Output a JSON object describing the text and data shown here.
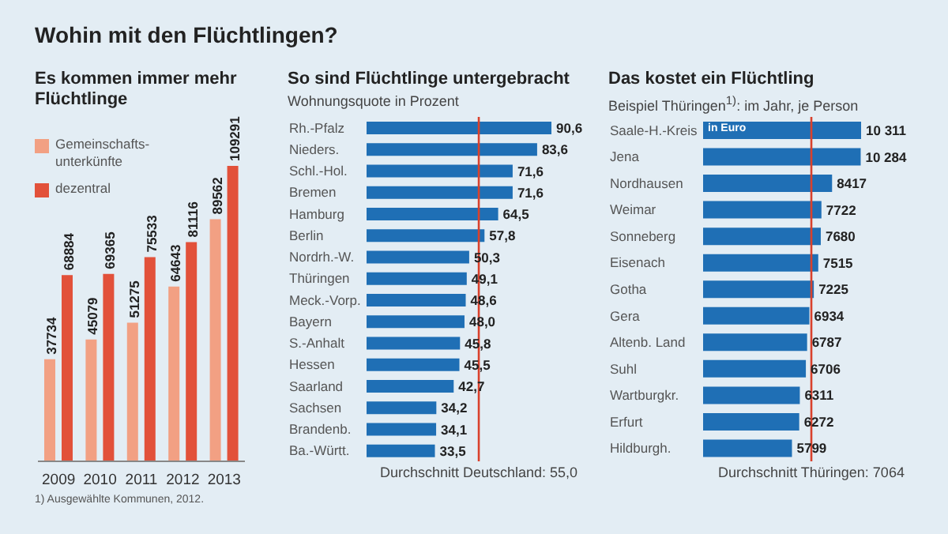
{
  "chart_data": [
    {
      "type": "bar",
      "title": "Wohin mit den Flüchtlingen?",
      "subtitle": "Es kommen immer mehr Flüchtlinge",
      "categories": [
        "2009",
        "2010",
        "2011",
        "2012",
        "2013"
      ],
      "legend": "top left",
      "series": [
        {
          "name": "Gemeinschafts-unterkünfte",
          "color": "#f2a083",
          "values": [
            37734,
            45079,
            51275,
            64643,
            89562
          ],
          "value_labels": [
            "37734",
            "45079",
            "51275",
            "64643",
            "89562"
          ]
        },
        {
          "name": "dezentral",
          "color": "#e2513a",
          "values": [
            68884,
            69365,
            75533,
            81116,
            109291
          ],
          "value_labels": [
            "68884",
            "69365",
            "75533",
            "81116",
            "109291"
          ]
        }
      ],
      "annotations": [
        "1) Ausgewählte Kommunen, 2012."
      ]
    },
    {
      "type": "bar",
      "orientation": "horizontal",
      "title": "So sind Flüchtlinge untergebracht",
      "subtitle": "Wohnungsquote in Prozent",
      "categories": [
        "Rh.-Pfalz",
        "Nieders.",
        "Schl.-Hol.",
        "Bremen",
        "Hamburg",
        "Berlin",
        "Nordrh.-W.",
        "Thüringen",
        "Meck.-Vorp.",
        "Bayern",
        "S.-Anhalt",
        "Hessen",
        "Saarland",
        "Sachsen",
        "Brandenb.",
        "Ba.-Württ."
      ],
      "color": "#1f6fb5",
      "values": [
        90.6,
        83.6,
        71.6,
        71.6,
        64.5,
        57.8,
        50.3,
        49.1,
        48.6,
        48.0,
        45.8,
        45.5,
        42.7,
        34.2,
        34.1,
        33.5
      ],
      "value_labels": [
        "90,6",
        "83,6",
        "71,6",
        "71,6",
        "64,5",
        "57,8",
        "50,3",
        "49,1",
        "48,6",
        "48,0",
        "45,8",
        "45,5",
        "42,7",
        "34,2",
        "34,1",
        "33,5"
      ],
      "ref_lines": [
        {
          "axis": "x",
          "value": 55.0,
          "label": "Durchschnitt Deutschland: 55,0",
          "color": "#d9412c"
        }
      ]
    },
    {
      "type": "bar",
      "orientation": "horizontal",
      "title": "Das kostet ein Flüchtling",
      "subtitle": "Beispiel Thüringen$^{1)}$: im Jahr, je Person",
      "categories": [
        "Saale-H.-Kreis",
        "Jena",
        "Nordhausen",
        "Weimar",
        "Sonneberg",
        "Eisenach",
        "Gotha",
        "Gera",
        "Altenb. Land",
        "Suhl",
        "Wartburgkr.",
        "Erfurt",
        "Hildburgh."
      ],
      "color": "#1f6fb5",
      "values": [
        10311,
        10284,
        8417,
        7722,
        7680,
        7515,
        7225,
        6934,
        6787,
        6706,
        6311,
        6272,
        5799
      ],
      "value_labels": [
        "10 311",
        "10 284",
        "8417",
        "7722",
        "7680",
        "7515",
        "7225",
        "6934",
        "6787",
        "6706",
        "6311",
        "6272",
        "5799"
      ],
      "ref_lines": [
        {
          "axis": "x",
          "value": 7064,
          "label": "Durchschnitt Thüringen: 7064",
          "color": "#d9412c"
        }
      ],
      "annotations": [
        "in Euro"
      ]
    }
  ]
}
